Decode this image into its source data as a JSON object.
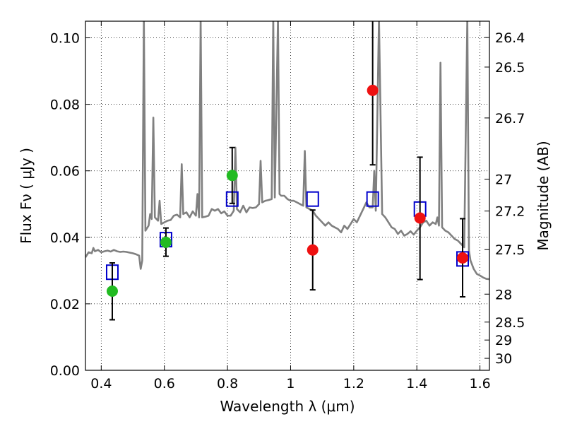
{
  "chart_data": {
    "type": "scatter",
    "xlabel": "Wavelength  λ (μm)",
    "ylabel": "Flux  Fν  ( μJy )",
    "y2label": "Magnitude (AB)",
    "xlim": [
      0.35,
      1.63
    ],
    "ylim": [
      0.0,
      0.105
    ],
    "grid": true,
    "x_ticks": [
      0.4,
      0.6,
      0.8,
      1.0,
      1.2,
      1.4,
      1.6
    ],
    "x_tick_labels": [
      "0.4",
      "0.6",
      "0.8",
      "1",
      "1.2",
      "1.4",
      "1.6"
    ],
    "y_ticks": [
      0.0,
      0.02,
      0.04,
      0.06,
      0.08,
      0.1
    ],
    "y_tick_labels": [
      "0.00",
      "0.02",
      "0.04",
      "0.06",
      "0.08",
      "0.10"
    ],
    "y2_ticks": [
      {
        "label": "26.4",
        "flux": 0.1001
      },
      {
        "label": "26.5",
        "flux": 0.0912
      },
      {
        "label": "26.7",
        "flux": 0.0759
      },
      {
        "label": "27",
        "flux": 0.0575
      },
      {
        "label": "27.2",
        "flux": 0.0479
      },
      {
        "label": "27.5",
        "flux": 0.0363
      },
      {
        "label": "28",
        "flux": 0.0229
      },
      {
        "label": "28.5",
        "flux": 0.0145
      },
      {
        "label": "29",
        "flux": 0.0091
      },
      {
        "label": "30",
        "flux": 0.0036
      }
    ],
    "series": [
      {
        "kind": "spectrum",
        "color": "#808080",
        "points": [
          [
            0.35,
            0.034
          ],
          [
            0.36,
            0.0355
          ],
          [
            0.37,
            0.0352
          ],
          [
            0.375,
            0.0368
          ],
          [
            0.38,
            0.0358
          ],
          [
            0.39,
            0.0362
          ],
          [
            0.4,
            0.0355
          ],
          [
            0.41,
            0.0358
          ],
          [
            0.42,
            0.036
          ],
          [
            0.43,
            0.0357
          ],
          [
            0.44,
            0.0362
          ],
          [
            0.45,
            0.0358
          ],
          [
            0.46,
            0.0356
          ],
          [
            0.47,
            0.0357
          ],
          [
            0.48,
            0.0356
          ],
          [
            0.49,
            0.0354
          ],
          [
            0.5,
            0.0352
          ],
          [
            0.51,
            0.0349
          ],
          [
            0.52,
            0.0345
          ],
          [
            0.525,
            0.0305
          ],
          [
            0.53,
            0.033
          ],
          [
            0.535,
            0.106
          ],
          [
            0.54,
            0.042
          ],
          [
            0.55,
            0.0435
          ],
          [
            0.555,
            0.047
          ],
          [
            0.56,
            0.0455
          ],
          [
            0.565,
            0.076
          ],
          [
            0.57,
            0.046
          ],
          [
            0.58,
            0.045
          ],
          [
            0.585,
            0.051
          ],
          [
            0.59,
            0.044
          ],
          [
            0.6,
            0.0445
          ],
          [
            0.61,
            0.045
          ],
          [
            0.62,
            0.0452
          ],
          [
            0.63,
            0.0465
          ],
          [
            0.64,
            0.0468
          ],
          [
            0.65,
            0.046
          ],
          [
            0.655,
            0.062
          ],
          [
            0.66,
            0.047
          ],
          [
            0.67,
            0.0475
          ],
          [
            0.68,
            0.046
          ],
          [
            0.69,
            0.0478
          ],
          [
            0.7,
            0.0465
          ],
          [
            0.705,
            0.053
          ],
          [
            0.71,
            0.046
          ],
          [
            0.715,
            0.106
          ],
          [
            0.72,
            0.046
          ],
          [
            0.73,
            0.0462
          ],
          [
            0.74,
            0.0465
          ],
          [
            0.75,
            0.0485
          ],
          [
            0.76,
            0.048
          ],
          [
            0.77,
            0.0485
          ],
          [
            0.78,
            0.0472
          ],
          [
            0.79,
            0.0478
          ],
          [
            0.8,
            0.0465
          ],
          [
            0.81,
            0.0465
          ],
          [
            0.82,
            0.048
          ],
          [
            0.825,
            0.067
          ],
          [
            0.83,
            0.0485
          ],
          [
            0.84,
            0.0475
          ],
          [
            0.85,
            0.0495
          ],
          [
            0.86,
            0.0475
          ],
          [
            0.87,
            0.049
          ],
          [
            0.88,
            0.0488
          ],
          [
            0.89,
            0.049
          ],
          [
            0.9,
            0.05
          ],
          [
            0.905,
            0.063
          ],
          [
            0.91,
            0.0505
          ],
          [
            0.92,
            0.051
          ],
          [
            0.93,
            0.0512
          ],
          [
            0.94,
            0.0515
          ],
          [
            0.945,
            0.106
          ],
          [
            0.95,
            0.052
          ],
          [
            0.96,
            0.106
          ],
          [
            0.965,
            0.053
          ],
          [
            0.97,
            0.0525
          ],
          [
            0.98,
            0.0525
          ],
          [
            0.99,
            0.0515
          ],
          [
            1.0,
            0.051
          ],
          [
            1.01,
            0.051
          ],
          [
            1.02,
            0.0505
          ],
          [
            1.03,
            0.05
          ],
          [
            1.04,
            0.0495
          ],
          [
            1.045,
            0.066
          ],
          [
            1.05,
            0.049
          ],
          [
            1.06,
            0.0485
          ],
          [
            1.07,
            0.048
          ],
          [
            1.08,
            0.0465
          ],
          [
            1.09,
            0.0455
          ],
          [
            1.1,
            0.0445
          ],
          [
            1.11,
            0.0435
          ],
          [
            1.12,
            0.0445
          ],
          [
            1.13,
            0.0435
          ],
          [
            1.14,
            0.043
          ],
          [
            1.15,
            0.0425
          ],
          [
            1.16,
            0.0415
          ],
          [
            1.17,
            0.0435
          ],
          [
            1.18,
            0.0425
          ],
          [
            1.19,
            0.044
          ],
          [
            1.2,
            0.0455
          ],
          [
            1.21,
            0.0445
          ],
          [
            1.22,
            0.0465
          ],
          [
            1.23,
            0.0485
          ],
          [
            1.24,
            0.0505
          ],
          [
            1.25,
            0.049
          ],
          [
            1.26,
            0.049
          ],
          [
            1.265,
            0.06
          ],
          [
            1.27,
            0.048
          ],
          [
            1.28,
            0.106
          ],
          [
            1.29,
            0.047
          ],
          [
            1.3,
            0.046
          ],
          [
            1.31,
            0.0445
          ],
          [
            1.32,
            0.043
          ],
          [
            1.33,
            0.0425
          ],
          [
            1.34,
            0.041
          ],
          [
            1.35,
            0.042
          ],
          [
            1.36,
            0.0405
          ],
          [
            1.37,
            0.041
          ],
          [
            1.38,
            0.0418
          ],
          [
            1.39,
            0.0408
          ],
          [
            1.4,
            0.042
          ],
          [
            1.41,
            0.043
          ],
          [
            1.42,
            0.0445
          ],
          [
            1.43,
            0.045
          ],
          [
            1.44,
            0.0435
          ],
          [
            1.45,
            0.0445
          ],
          [
            1.46,
            0.044
          ],
          [
            1.465,
            0.046
          ],
          [
            1.47,
            0.0435
          ],
          [
            1.475,
            0.0925
          ],
          [
            1.48,
            0.043
          ],
          [
            1.49,
            0.042
          ],
          [
            1.5,
            0.0415
          ],
          [
            1.51,
            0.0405
          ],
          [
            1.52,
            0.0395
          ],
          [
            1.53,
            0.039
          ],
          [
            1.54,
            0.038
          ],
          [
            1.55,
            0.037
          ],
          [
            1.56,
            0.106
          ],
          [
            1.565,
            0.036
          ],
          [
            1.57,
            0.033
          ],
          [
            1.58,
            0.0305
          ],
          [
            1.59,
            0.029
          ],
          [
            1.6,
            0.0285
          ],
          [
            1.61,
            0.0279
          ],
          [
            1.62,
            0.0275
          ],
          [
            1.63,
            0.0274
          ]
        ]
      },
      {
        "kind": "open-squares",
        "color": "#0000cc",
        "points": [
          [
            0.435,
            0.0295
          ],
          [
            0.605,
            0.0393
          ],
          [
            0.815,
            0.0515
          ],
          [
            1.07,
            0.0515
          ],
          [
            1.26,
            0.0515
          ],
          [
            1.41,
            0.0485
          ],
          [
            1.545,
            0.0335
          ]
        ]
      },
      {
        "kind": "filled-circles",
        "color": "#22bb22",
        "points": [
          {
            "x": 0.435,
            "y": 0.0238,
            "err": [
              0.0152,
              0.0323
            ]
          },
          {
            "x": 0.605,
            "y": 0.0385,
            "err": [
              0.0343,
              0.0428
            ]
          },
          {
            "x": 0.815,
            "y": 0.0586,
            "err": [
              0.0502,
              0.067
            ]
          }
        ]
      },
      {
        "kind": "filled-circles",
        "color": "#ee1111",
        "points": [
          {
            "x": 1.07,
            "y": 0.0362,
            "err": [
              0.0242,
              0.0482
            ]
          },
          {
            "x": 1.26,
            "y": 0.0842,
            "err": [
              0.0618,
              0.106
            ]
          },
          {
            "x": 1.41,
            "y": 0.0458,
            "err": [
              0.0273,
              0.0641
            ]
          },
          {
            "x": 1.545,
            "y": 0.0338,
            "err": [
              0.0221,
              0.0456
            ]
          }
        ]
      }
    ]
  }
}
